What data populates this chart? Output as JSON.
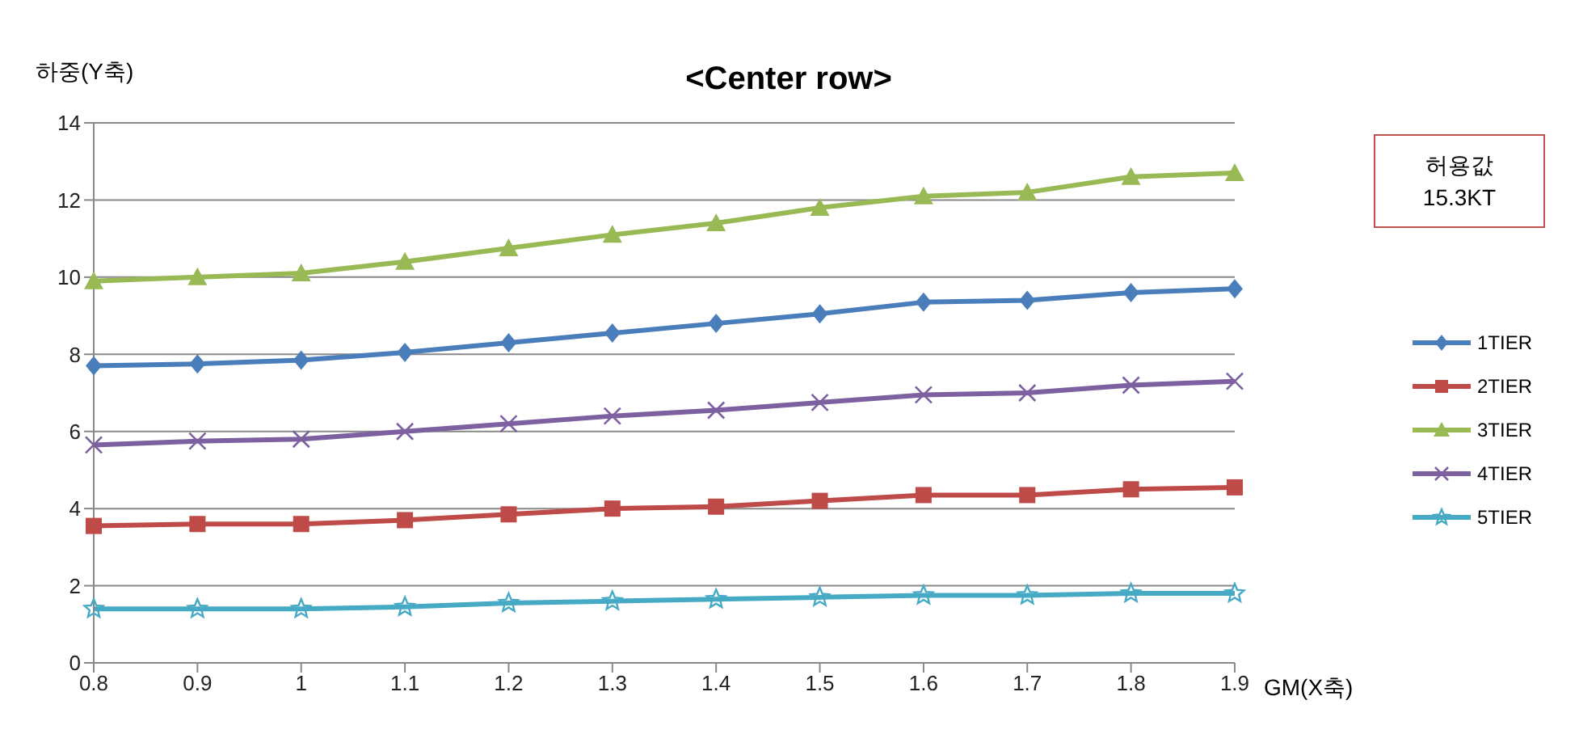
{
  "chart_data": {
    "type": "line",
    "title": "<Center row>",
    "xlabel": "GM(X축)",
    "ylabel": "하중(Y축)",
    "annotations": [
      "허용값\n15.3KT"
    ],
    "categories": [
      "0.8",
      "0.9",
      "1",
      "1.1",
      "1.2",
      "1.3",
      "1.4",
      "1.5",
      "1.6",
      "1.7",
      "1.8",
      "1.9"
    ],
    "series": [
      {
        "name": "1TIER",
        "color": "#4a7ebb",
        "marker": "diamond",
        "values": [
          7.7,
          7.75,
          7.85,
          8.05,
          8.3,
          8.55,
          8.8,
          9.05,
          9.35,
          9.4,
          9.6,
          9.7
        ]
      },
      {
        "name": "2TIER",
        "color": "#be4b48",
        "marker": "square",
        "values": [
          3.55,
          3.6,
          3.6,
          3.7,
          3.85,
          4.0,
          4.05,
          4.2,
          4.35,
          4.35,
          4.5,
          4.55
        ]
      },
      {
        "name": "3TIER",
        "color": "#98b954",
        "marker": "triangle",
        "values": [
          9.9,
          10.0,
          10.1,
          10.4,
          10.75,
          11.1,
          11.4,
          11.8,
          12.1,
          12.2,
          12.6,
          12.7
        ]
      },
      {
        "name": "4TIER",
        "color": "#7d60a0",
        "marker": "cross",
        "values": [
          5.65,
          5.75,
          5.8,
          6.0,
          6.2,
          6.4,
          6.55,
          6.75,
          6.95,
          7.0,
          7.2,
          7.3
        ]
      },
      {
        "name": "5TIER",
        "color": "#46aac5",
        "marker": "star",
        "values": [
          1.4,
          1.4,
          1.4,
          1.45,
          1.55,
          1.6,
          1.65,
          1.7,
          1.75,
          1.75,
          1.8,
          1.8
        ]
      }
    ],
    "ylim": [
      0,
      14
    ],
    "yticks": [
      0,
      2,
      4,
      6,
      8,
      10,
      12,
      14
    ],
    "grid": "y",
    "legend": "right",
    "line_style": "solid"
  }
}
